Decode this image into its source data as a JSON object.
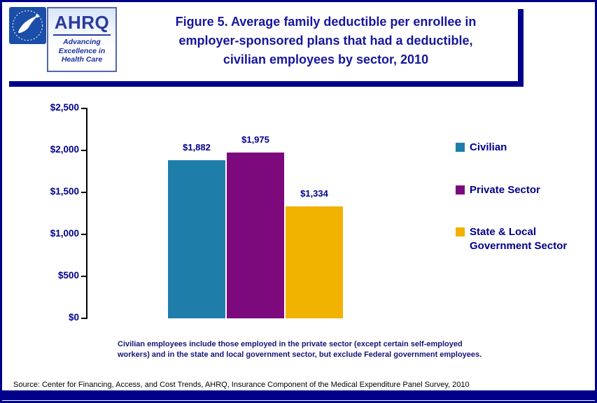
{
  "colors": {
    "accent_navy": "#00008B",
    "axis_black": "#000000"
  },
  "header": {
    "hhs_logo_alt": "HHS eagle logo",
    "ahrq_logo_text": "AHRQ",
    "ahrq_tagline": "Advancing\nExcellence in\nHealth Care",
    "title": "Figure 5. Average family deductible per enrollee in\nemployer-sponsored plans that had a deductible,\ncivilian employees by sector, 2010"
  },
  "chart_data": {
    "type": "bar",
    "title": "Figure 5. Average family deductible per enrollee in employer-sponsored plans that had a deductible, civilian employees by sector, 2010",
    "categories": [
      "Civilian",
      "Private Sector",
      "State & Local Government Sector"
    ],
    "values": [
      1882,
      1975,
      1334
    ],
    "value_labels": [
      "$1,882",
      "$1,975",
      "$1,334"
    ],
    "bar_colors": [
      "#1F7DA9",
      "#7C0A7C",
      "#F2B200"
    ],
    "ylim": [
      0,
      2500
    ],
    "ytick_values": [
      0,
      500,
      1000,
      1500,
      2000,
      2500
    ],
    "ytick_labels": [
      "$0",
      "$500",
      "$1,000",
      "$1,500",
      "$2,000",
      "$2,500"
    ],
    "xlabel": "",
    "ylabel": "",
    "grid": false,
    "legend_position": "right",
    "legend": [
      {
        "label": "Civilian",
        "color": "#1F7DA9"
      },
      {
        "label": "Private Sector",
        "color": "#7C0A7C"
      },
      {
        "label": "State & Local\nGovernment Sector",
        "color": "#F2B200"
      }
    ]
  },
  "footnote": "Civilian employees include those employed in the private sector (except certain self-employed\nworkers) and in the state and local government sector, but exclude Federal government employees.",
  "source": "Source: Center for Financing, Access, and Cost Trends, AHRQ, Insurance Component of the Medical Expenditure Panel Survey, 2010"
}
